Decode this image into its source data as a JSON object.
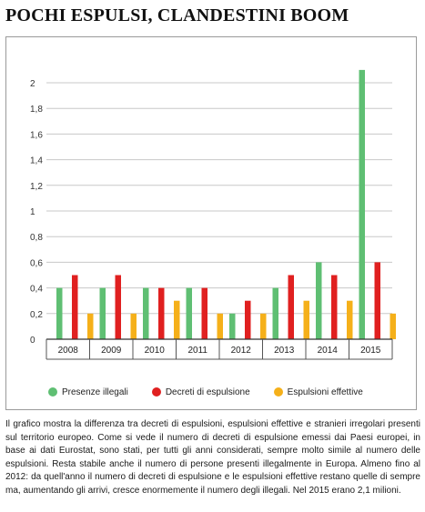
{
  "headline": "POCHI ESPULSI, CLANDESTINI BOOM",
  "colors": {
    "presenze": "#5fbf73",
    "decreti": "#e02020",
    "espulsioni": "#f5b01a",
    "axis": "#333333",
    "grid": "#c8c8c8"
  },
  "chart_data": {
    "type": "bar",
    "categories": [
      "2008",
      "2009",
      "2010",
      "2011",
      "2012",
      "2013",
      "2014",
      "2015"
    ],
    "series": [
      {
        "name": "Presenze illegali",
        "values": [
          0.4,
          0.4,
          0.4,
          0.4,
          0.2,
          0.4,
          0.6,
          2.1
        ]
      },
      {
        "name": "Decreti di espulsione",
        "values": [
          0.5,
          0.5,
          0.4,
          0.4,
          0.3,
          0.5,
          0.5,
          0.6
        ]
      },
      {
        "name": "Espulsioni effettive",
        "values": [
          0.2,
          0.2,
          0.3,
          0.2,
          0.2,
          0.3,
          0.3,
          0.2
        ]
      }
    ],
    "yticks": [
      "0",
      "0,2",
      "0,4",
      "0,6",
      "0,8",
      "1",
      "1,2",
      "1,4",
      "1,6",
      "1,8",
      "2"
    ],
    "ylim": [
      0,
      2
    ],
    "grid": true,
    "legend_position": "bottom"
  },
  "caption": "Il grafico mostra la differenza tra decreti di espulsioni, espulsioni effettive e stranieri irregolari presenti sul territorio europeo. Come si vede il numero di decreti di espulsione emessi dai Paesi europei, in base ai dati Eurostat, sono stati, per tutti gli anni considerati, sempre molto simile al numero delle espulsioni. Resta stabile anche il numero di persone presenti illegalmente in Europa. Almeno fino al 2012: da quell'anno il numero di decreti di espulsione e le espulsioni effettive restano quelle di sempre ma, aumentando gli arrivi, cresce enormemente il numero degli illegali. Nel 2015 erano 2,1 milioni."
}
